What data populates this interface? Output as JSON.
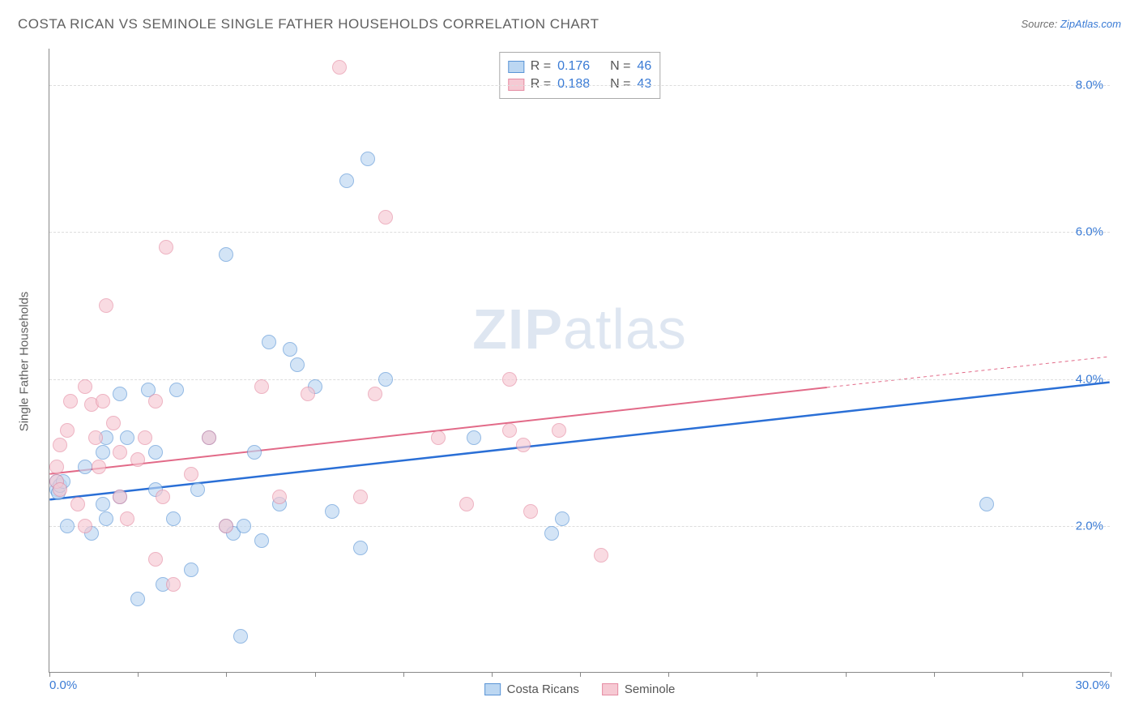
{
  "title": "COSTA RICAN VS SEMINOLE SINGLE FATHER HOUSEHOLDS CORRELATION CHART",
  "source_prefix": "Source: ",
  "source_name": "ZipAtlas.com",
  "watermark_bold": "ZIP",
  "watermark_rest": "atlas",
  "chart": {
    "type": "scatter-with-trend",
    "ylabel": "Single Father Households",
    "xlim": [
      0,
      30
    ],
    "ylim": [
      0,
      8.5
    ],
    "xlim_labels": [
      "0.0%",
      "30.0%"
    ],
    "ytick_values": [
      2.0,
      4.0,
      6.0,
      8.0
    ],
    "ytick_labels": [
      "2.0%",
      "4.0%",
      "6.0%",
      "8.0%"
    ],
    "xtick_values": [
      0,
      2.5,
      5,
      7.5,
      10,
      12.5,
      15,
      17.5,
      20,
      22.5,
      25,
      27.5,
      30
    ],
    "background_color": "#ffffff",
    "grid_color": "#dddddd",
    "axis_color": "#888888",
    "marker_radius": 9,
    "marker_opacity": 0.65,
    "series": [
      {
        "key": "costa_ricans",
        "label": "Costa Ricans",
        "r": "0.176",
        "n": "46",
        "fill": "#bcd7f2",
        "stroke": "#5a95d6",
        "line_color": "#2a6fd6",
        "line_width": 2.5,
        "trend": {
          "x1": 0,
          "y1": 2.35,
          "x2_solid": 30,
          "y2_solid": 3.95,
          "x2_dash": 30,
          "y2_dash": 3.95
        },
        "points": [
          [
            0.2,
            2.5
          ],
          [
            0.2,
            2.6
          ],
          [
            0.25,
            2.45
          ],
          [
            0.3,
            2.55
          ],
          [
            0.4,
            2.6
          ],
          [
            0.5,
            2.0
          ],
          [
            1.0,
            2.8
          ],
          [
            1.2,
            1.9
          ],
          [
            1.5,
            2.3
          ],
          [
            1.5,
            3.0
          ],
          [
            1.6,
            3.2
          ],
          [
            1.6,
            2.1
          ],
          [
            2.0,
            2.4
          ],
          [
            2.0,
            3.8
          ],
          [
            2.2,
            3.2
          ],
          [
            2.5,
            1.0
          ],
          [
            2.8,
            3.85
          ],
          [
            3.0,
            2.5
          ],
          [
            3.0,
            3.0
          ],
          [
            3.2,
            1.2
          ],
          [
            3.5,
            2.1
          ],
          [
            3.6,
            3.85
          ],
          [
            4.0,
            1.4
          ],
          [
            4.2,
            2.5
          ],
          [
            4.5,
            3.2
          ],
          [
            5.0,
            5.7
          ],
          [
            5.0,
            2.0
          ],
          [
            5.2,
            1.9
          ],
          [
            5.4,
            0.5
          ],
          [
            5.5,
            2.0
          ],
          [
            5.8,
            3.0
          ],
          [
            6.0,
            1.8
          ],
          [
            6.2,
            4.5
          ],
          [
            6.8,
            4.4
          ],
          [
            7.0,
            4.2
          ],
          [
            7.5,
            3.9
          ],
          [
            8.0,
            2.2
          ],
          [
            8.4,
            6.7
          ],
          [
            8.8,
            1.7
          ],
          [
            9.0,
            7.0
          ],
          [
            9.5,
            4.0
          ],
          [
            12.0,
            3.2
          ],
          [
            14.2,
            1.9
          ],
          [
            14.5,
            2.1
          ],
          [
            26.5,
            2.3
          ],
          [
            6.5,
            2.3
          ]
        ]
      },
      {
        "key": "seminole",
        "label": "Seminole",
        "r": "0.188",
        "n": "43",
        "fill": "#f6c9d3",
        "stroke": "#e58ca3",
        "line_color": "#e26a88",
        "line_width": 2,
        "trend": {
          "x1": 0,
          "y1": 2.7,
          "x2_solid": 22,
          "y2_solid": 3.88,
          "x2_dash": 30,
          "y2_dash": 4.3
        },
        "points": [
          [
            0.2,
            2.6
          ],
          [
            0.2,
            2.8
          ],
          [
            0.3,
            2.5
          ],
          [
            0.3,
            3.1
          ],
          [
            0.5,
            3.3
          ],
          [
            0.6,
            3.7
          ],
          [
            0.8,
            2.3
          ],
          [
            1.0,
            3.9
          ],
          [
            1.0,
            2.0
          ],
          [
            1.2,
            3.65
          ],
          [
            1.3,
            3.2
          ],
          [
            1.4,
            2.8
          ],
          [
            1.5,
            3.7
          ],
          [
            1.6,
            5.0
          ],
          [
            1.8,
            3.4
          ],
          [
            2.0,
            2.4
          ],
          [
            2.0,
            3.0
          ],
          [
            2.2,
            2.1
          ],
          [
            2.5,
            2.9
          ],
          [
            2.7,
            3.2
          ],
          [
            3.0,
            1.55
          ],
          [
            3.0,
            3.7
          ],
          [
            3.2,
            2.4
          ],
          [
            3.3,
            5.8
          ],
          [
            3.5,
            1.2
          ],
          [
            4.0,
            2.7
          ],
          [
            4.5,
            3.2
          ],
          [
            5.0,
            2.0
          ],
          [
            6.0,
            3.9
          ],
          [
            6.5,
            2.4
          ],
          [
            7.3,
            3.8
          ],
          [
            8.2,
            8.25
          ],
          [
            8.8,
            2.4
          ],
          [
            9.2,
            3.8
          ],
          [
            9.5,
            6.2
          ],
          [
            11.0,
            3.2
          ],
          [
            13.0,
            3.3
          ],
          [
            13.4,
            3.1
          ],
          [
            13.6,
            2.2
          ],
          [
            14.4,
            3.3
          ],
          [
            15.6,
            1.6
          ],
          [
            13.0,
            4.0
          ],
          [
            11.8,
            2.3
          ]
        ]
      }
    ]
  },
  "legend_top": {
    "r_label": "R =",
    "n_label": "N ="
  }
}
